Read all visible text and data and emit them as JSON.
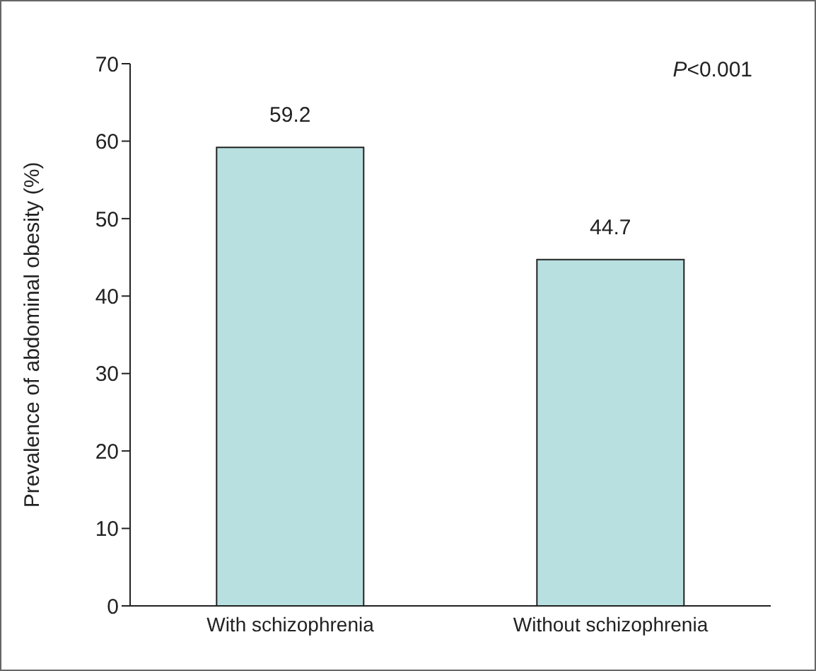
{
  "chart_data": {
    "type": "bar",
    "ylabel": "Prevalence of abdominal obesity (%)",
    "categories": [
      "With schizophrenia",
      "Without schizophrenia"
    ],
    "values": [
      59.2,
      44.7
    ],
    "color": "#b9e0e1",
    "ylim": [
      0,
      70
    ],
    "yticks": [
      0,
      10,
      20,
      30,
      40,
      50,
      60,
      70
    ],
    "data_labels": true,
    "grid": false,
    "legend": false,
    "annotations": [
      "P<0.001"
    ]
  }
}
